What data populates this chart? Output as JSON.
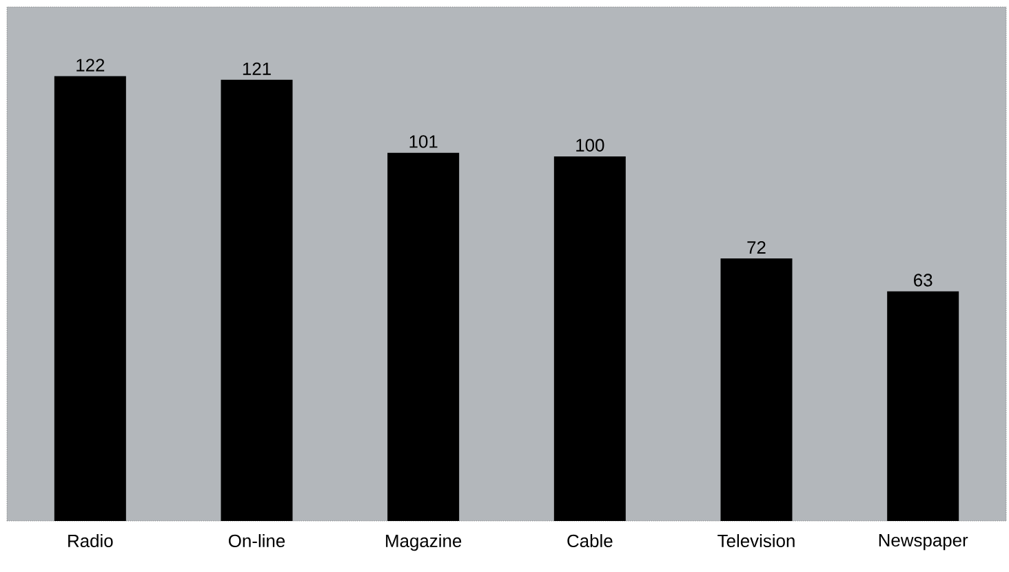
{
  "chart_data": {
    "type": "bar",
    "categories": [
      "Radio",
      "On-line",
      "Magazine",
      "Cable",
      "Television",
      "Newspaper"
    ],
    "values": [
      122,
      121,
      101,
      100,
      72,
      63
    ],
    "color": "#000000",
    "ylim": [
      0,
      141
    ],
    "data_labels": true,
    "tick_labels": "x"
  }
}
